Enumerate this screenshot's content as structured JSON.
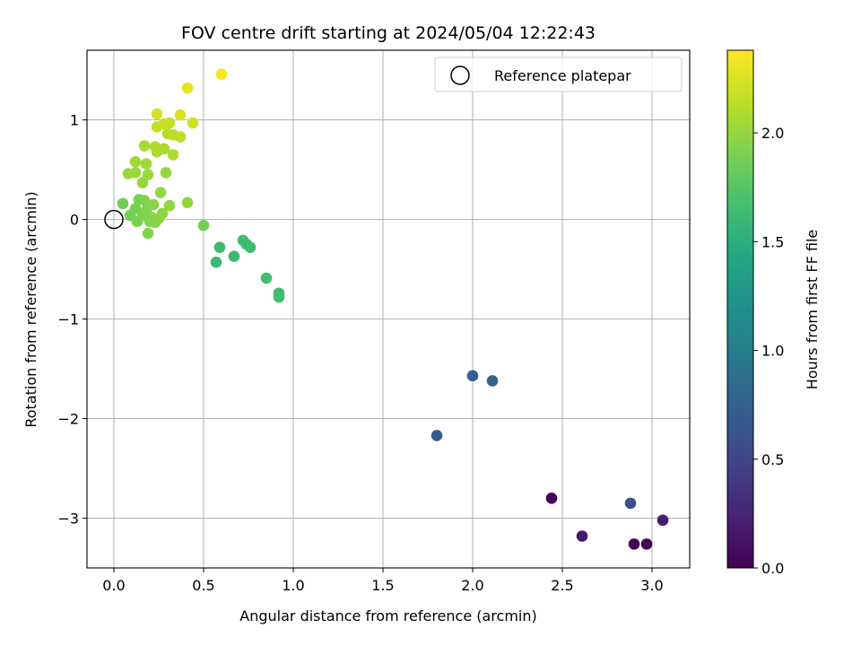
{
  "chart_data": {
    "type": "scatter",
    "title": "FOV centre drift starting at 2024/05/04 12:22:43",
    "xlabel": "Angular distance from reference (arcmin)",
    "ylabel": "Rotation from reference (arcmin)",
    "xlim": [
      -0.15,
      3.21
    ],
    "ylim": [
      -3.5,
      1.7
    ],
    "xticks": [
      0.0,
      0.5,
      1.0,
      1.5,
      2.0,
      2.5,
      3.0
    ],
    "xtick_labels": [
      "0.0",
      "0.5",
      "1.0",
      "1.5",
      "2.0",
      "2.5",
      "3.0"
    ],
    "yticks": [
      -3,
      -2,
      -1,
      0,
      1
    ],
    "ytick_labels": [
      "−3",
      "−2",
      "−1",
      "0",
      "1"
    ],
    "grid": true,
    "legend": {
      "placement": "top-right",
      "label": "Reference platepar"
    },
    "reference_point": {
      "x": 0.0,
      "y": 0.0
    },
    "colorbar": {
      "label": "Hours from first FF file",
      "colormap": "viridis",
      "range": [
        0.0,
        2.38
      ],
      "ticks": [
        0.0,
        0.5,
        1.0,
        1.5,
        2.0
      ],
      "tick_labels": [
        "0.0",
        "0.5",
        "1.0",
        "1.5",
        "2.0"
      ]
    },
    "points": [
      {
        "x": 2.44,
        "y": -2.8,
        "t": 0.02
      },
      {
        "x": 2.9,
        "y": -3.26,
        "t": 0.03
      },
      {
        "x": 2.97,
        "y": -3.26,
        "t": 0.04
      },
      {
        "x": 2.61,
        "y": -3.18,
        "t": 0.17
      },
      {
        "x": 3.06,
        "y": -3.02,
        "t": 0.2
      },
      {
        "x": 2.88,
        "y": -2.85,
        "t": 0.6
      },
      {
        "x": 1.8,
        "y": -2.17,
        "t": 0.68
      },
      {
        "x": 2.0,
        "y": -1.57,
        "t": 0.72
      },
      {
        "x": 2.11,
        "y": -1.62,
        "t": 0.76
      },
      {
        "x": 0.57,
        "y": -0.43,
        "t": 1.62
      },
      {
        "x": 0.67,
        "y": -0.37,
        "t": 1.62
      },
      {
        "x": 0.59,
        "y": -0.28,
        "t": 1.63
      },
      {
        "x": 0.72,
        "y": -0.21,
        "t": 1.63
      },
      {
        "x": 0.74,
        "y": -0.25,
        "t": 1.64
      },
      {
        "x": 0.76,
        "y": -0.28,
        "t": 1.64
      },
      {
        "x": 0.85,
        "y": -0.59,
        "t": 1.65
      },
      {
        "x": 0.92,
        "y": -0.74,
        "t": 1.65
      },
      {
        "x": 0.92,
        "y": -0.78,
        "t": 1.66
      },
      {
        "x": 0.5,
        "y": -0.06,
        "t": 1.88
      },
      {
        "x": 0.05,
        "y": 0.16,
        "t": 1.87
      },
      {
        "x": 0.09,
        "y": 0.04,
        "t": 1.88
      },
      {
        "x": 0.12,
        "y": 0.11,
        "t": 1.89
      },
      {
        "x": 0.13,
        "y": -0.02,
        "t": 1.9
      },
      {
        "x": 0.14,
        "y": 0.2,
        "t": 1.9
      },
      {
        "x": 0.16,
        "y": 0.04,
        "t": 1.91
      },
      {
        "x": 0.17,
        "y": 0.19,
        "t": 1.92
      },
      {
        "x": 0.18,
        "y": 0.09,
        "t": 1.93
      },
      {
        "x": 0.19,
        "y": -0.14,
        "t": 1.94
      },
      {
        "x": 0.2,
        "y": -0.02,
        "t": 1.94
      },
      {
        "x": 0.21,
        "y": 0.02,
        "t": 1.95
      },
      {
        "x": 0.22,
        "y": 0.15,
        "t": 1.96
      },
      {
        "x": 0.23,
        "y": -0.03,
        "t": 1.96
      },
      {
        "x": 0.25,
        "y": 0.01,
        "t": 1.97
      },
      {
        "x": 0.27,
        "y": 0.06,
        "t": 1.98
      },
      {
        "x": 0.31,
        "y": 0.14,
        "t": 1.99
      },
      {
        "x": 0.26,
        "y": 0.27,
        "t": 1.99
      },
      {
        "x": 0.41,
        "y": 0.17,
        "t": 2.0
      },
      {
        "x": 0.29,
        "y": 0.47,
        "t": 2.0
      },
      {
        "x": 0.16,
        "y": 0.37,
        "t": 2.01
      },
      {
        "x": 0.08,
        "y": 0.46,
        "t": 2.02
      },
      {
        "x": 0.12,
        "y": 0.47,
        "t": 2.03
      },
      {
        "x": 0.19,
        "y": 0.45,
        "t": 2.03
      },
      {
        "x": 0.12,
        "y": 0.58,
        "t": 2.04
      },
      {
        "x": 0.18,
        "y": 0.56,
        "t": 2.05
      },
      {
        "x": 0.17,
        "y": 0.74,
        "t": 2.07
      },
      {
        "x": 0.24,
        "y": 0.68,
        "t": 2.08
      },
      {
        "x": 0.28,
        "y": 0.71,
        "t": 2.09
      },
      {
        "x": 0.23,
        "y": 0.73,
        "t": 2.1
      },
      {
        "x": 0.33,
        "y": 0.65,
        "t": 2.1
      },
      {
        "x": 0.3,
        "y": 0.86,
        "t": 2.12
      },
      {
        "x": 0.33,
        "y": 0.85,
        "t": 2.13
      },
      {
        "x": 0.37,
        "y": 0.83,
        "t": 2.13
      },
      {
        "x": 0.31,
        "y": 0.97,
        "t": 2.15
      },
      {
        "x": 0.24,
        "y": 0.93,
        "t": 2.16
      },
      {
        "x": 0.28,
        "y": 0.96,
        "t": 2.17
      },
      {
        "x": 0.44,
        "y": 0.97,
        "t": 2.21
      },
      {
        "x": 0.24,
        "y": 1.06,
        "t": 2.24
      },
      {
        "x": 0.37,
        "y": 1.05,
        "t": 2.25
      },
      {
        "x": 0.41,
        "y": 1.32,
        "t": 2.3
      },
      {
        "x": 0.6,
        "y": 1.46,
        "t": 2.36
      }
    ]
  }
}
